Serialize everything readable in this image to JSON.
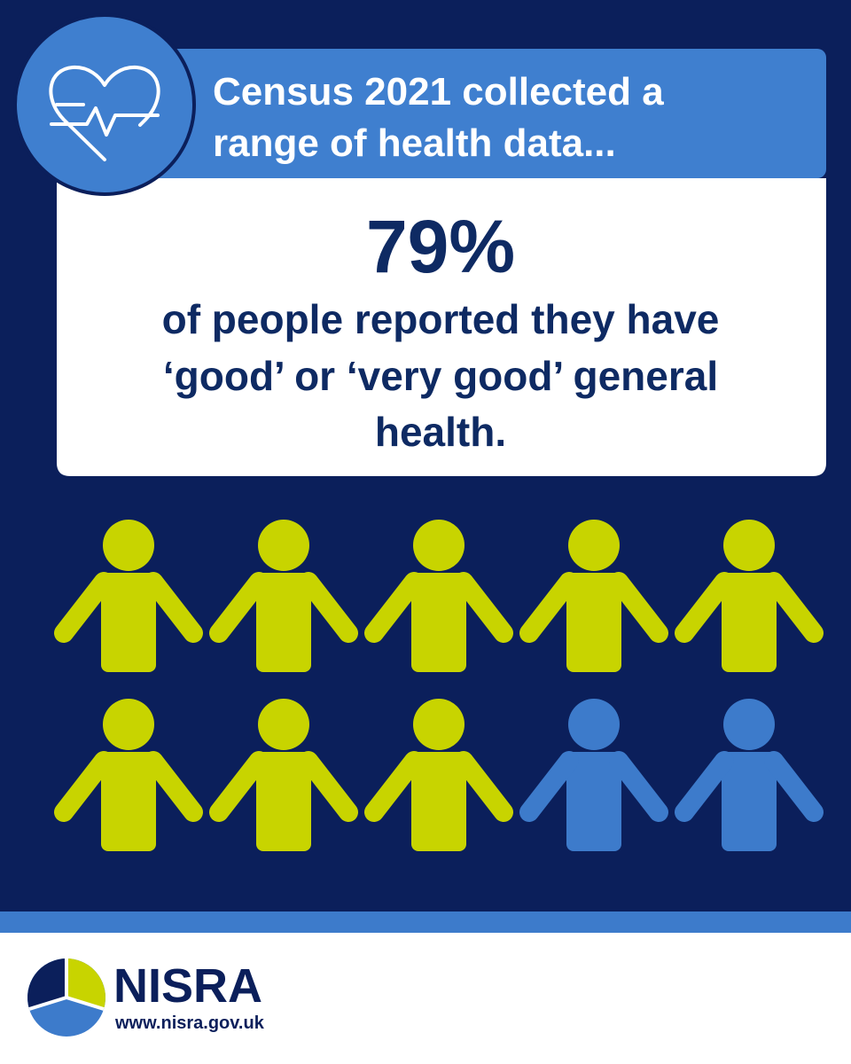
{
  "header": {
    "title_lines": [
      "Census 2021 collected a",
      "range of health data..."
    ]
  },
  "stat": {
    "value_text": "79%",
    "description_lines": [
      "of people reported they have",
      "‘good’ or ‘very good’ general",
      "health."
    ]
  },
  "footer": {
    "logo_text": "NISRA",
    "url": "www.nisra.gov.uk"
  }
}
